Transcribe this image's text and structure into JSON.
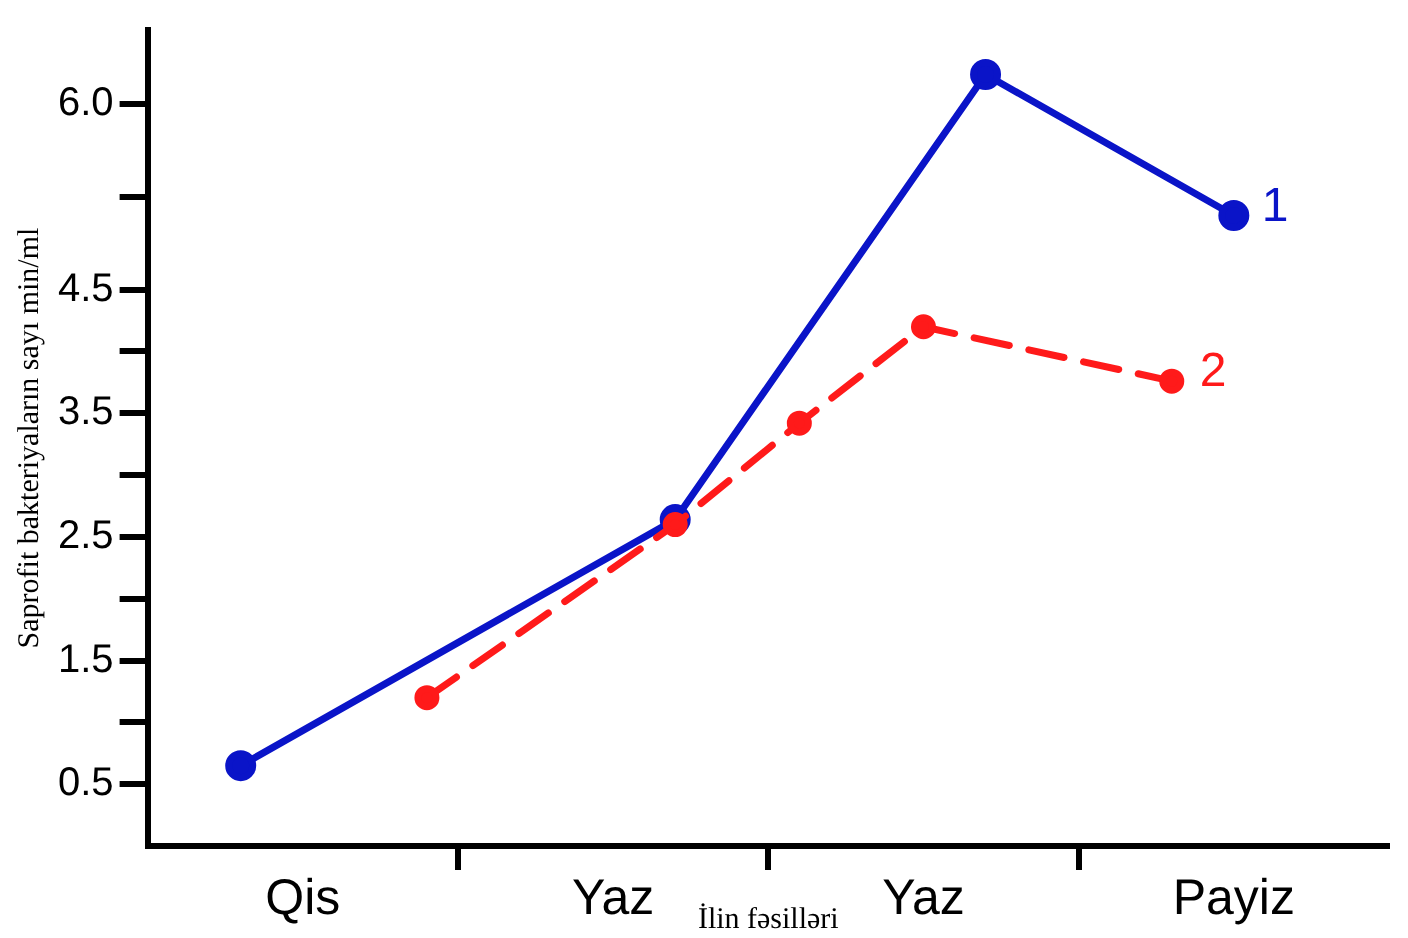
{
  "chart_data": {
    "type": "line",
    "xlabel": "İlin fəsilləri",
    "ylabel": "Saprofit bakteriyaların sayı min/ml",
    "categories": [
      null,
      null,
      "Qis",
      null,
      null,
      null,
      null,
      "Yaz",
      null,
      null,
      null,
      null,
      "Yaz",
      null,
      null,
      null,
      null,
      "Payiz",
      null,
      null
    ],
    "ylim": [
      0,
      6.6
    ],
    "yticks": [
      0.5,
      {
        "value": 1,
        "label": null
      },
      1.5,
      {
        "value": 2,
        "label": null
      },
      2.5,
      {
        "value": 3,
        "label": null
      },
      3.5,
      {
        "value": 4,
        "label": null
      },
      4.5,
      {
        "value": 5.25,
        "label": null
      },
      {
        "value": 6,
        "label": "6.0"
      }
    ],
    "series": [
      {
        "color": "#0a14c8",
        "values": [
          null,
          0.65,
          null,
          null,
          null,
          null,
          null,
          null,
          2.64,
          null,
          null,
          null,
          null,
          6.24,
          null,
          null,
          null,
          5.1,
          null,
          null
        ],
        "line_style": "solid"
      },
      {
        "color": "#ff1a1a",
        "values": [
          null,
          null,
          null,
          null,
          1.2,
          null,
          null,
          null,
          2.6,
          null,
          3.42,
          null,
          4.2,
          null,
          null,
          null,
          3.76,
          null,
          null,
          null
        ],
        "line_style": "dashed"
      }
    ],
    "annotations": [
      "1",
      "2"
    ],
    "marker": "circle"
  }
}
